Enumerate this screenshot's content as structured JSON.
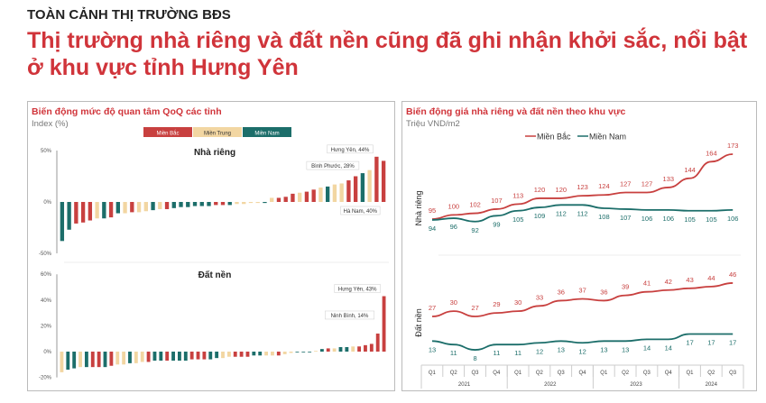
{
  "header": {
    "kicker": "TOÀN CẢNH THỊ TRƯỜNG BĐS",
    "title": "Thị trường nhà riêng và đất nền cũng đã ghi nhận khởi sắc, nổi bật ở khu vực tỉnh Hưng Yên"
  },
  "colors": {
    "mien_bac": "#c8403f",
    "mien_trung": "#f2d6a2",
    "mien_nam": "#1c6e6a",
    "title_red": "#d0343a"
  },
  "chart_data": [
    {
      "type": "bar",
      "title": "Biến động mức độ quan tâm QoQ các tỉnh",
      "subtitle": "Index (%)",
      "legend": [
        "Miền Bắc",
        "Miền Trung",
        "Miền Nam"
      ],
      "legend_placement": "top",
      "panels": [
        {
          "title": "Nhà riêng",
          "ylim": [
            -50,
            50
          ],
          "ticks": [
            "50%",
            "0%",
            "-50%"
          ],
          "tick_values": [
            50,
            0,
            -50
          ],
          "regions": [
            "N",
            "N",
            "B",
            "B",
            "B",
            "T",
            "N",
            "B",
            "N",
            "T",
            "B",
            "T",
            "T",
            "N",
            "T",
            "B",
            "N",
            "N",
            "N",
            "N",
            "N",
            "N",
            "B",
            "B",
            "N",
            "T",
            "T",
            "T",
            "T",
            "N",
            "T",
            "B",
            "B",
            "B",
            "T",
            "B",
            "B",
            "T",
            "N",
            "T",
            "T",
            "B",
            "B",
            "N",
            "T",
            "B",
            "B"
          ],
          "values": [
            -38,
            -27,
            -21,
            -20,
            -18,
            -16,
            -16,
            -15,
            -11,
            -11,
            -10,
            -10,
            -9,
            -8,
            -7,
            -7,
            -6,
            -5,
            -5,
            -4,
            -4,
            -4,
            -3,
            -3,
            -3,
            -2,
            -2,
            -1,
            -1,
            -1,
            4,
            4,
            5,
            8,
            9,
            10,
            12,
            14,
            15,
            17,
            18,
            21,
            25,
            28,
            31,
            44,
            40
          ],
          "annotations": [
            {
              "index": 43,
              "text": "Bình Phước, 28%"
            },
            {
              "index": 45,
              "text": "Hưng Yên, 44%"
            },
            {
              "index": 46,
              "text": "Hà Nam, 40%"
            }
          ]
        },
        {
          "title": "Đất nền",
          "ylim": [
            -20,
            60
          ],
          "ticks": [
            "60%",
            "40%",
            "20%",
            "0%",
            "-20%"
          ],
          "tick_values": [
            60,
            40,
            20,
            0,
            -20
          ],
          "regions": [
            "T",
            "N",
            "N",
            "T",
            "N",
            "B",
            "B",
            "N",
            "B",
            "T",
            "T",
            "N",
            "T",
            "T",
            "B",
            "N",
            "N",
            "B",
            "N",
            "N",
            "N",
            "B",
            "B",
            "B",
            "N",
            "N",
            "T",
            "T",
            "B",
            "B",
            "B",
            "N",
            "N",
            "T",
            "T",
            "B",
            "T",
            "T",
            "N",
            "N",
            "N",
            "T",
            "N",
            "B",
            "T",
            "N",
            "N",
            "T",
            "B",
            "B",
            "B",
            "B",
            "B"
          ],
          "values": [
            -16,
            -14,
            -13,
            -12,
            -12,
            -12,
            -12,
            -12,
            -11,
            -10,
            -10,
            -9,
            -9,
            -8,
            -8,
            -7,
            -7,
            -7,
            -7,
            -7,
            -7,
            -6,
            -6,
            -6,
            -6,
            -5,
            -5,
            -4,
            -4,
            -4,
            -4,
            -3,
            -3,
            -3,
            -3,
            -3,
            -2,
            -1,
            -0.5,
            -0.5,
            -0.5,
            0.5,
            2,
            2.5,
            2.5,
            3.5,
            3.5,
            4,
            4,
            5,
            6,
            14,
            43
          ],
          "annotations": [
            {
              "index": 51,
              "text": "Ninh Bình, 14%"
            },
            {
              "index": 52,
              "text": "Hưng Yên, 43%"
            }
          ]
        }
      ]
    },
    {
      "type": "line",
      "title": "Biến động giá nhà riêng và đất nền theo khu vực",
      "subtitle": "Triệu VND/m2",
      "legend_placement": "top",
      "categories": [
        "Q1",
        "Q2",
        "Q3",
        "Q4",
        "Q1",
        "Q2",
        "Q3",
        "Q4",
        "Q1",
        "Q2",
        "Q3",
        "Q4",
        "Q1",
        "Q2",
        "Q3"
      ],
      "years": [
        {
          "label": "2021",
          "span": 4
        },
        {
          "label": "2022",
          "span": 4
        },
        {
          "label": "2023",
          "span": 4
        },
        {
          "label": "2024",
          "span": 3
        }
      ],
      "panels": [
        {
          "ylabel": "Nhà riêng",
          "series": [
            {
              "name": "Miền Bắc",
              "values": [
                95,
                100,
                102,
                107,
                113,
                120,
                120,
                123,
                124,
                127,
                127,
                133,
                144,
                164,
                173
              ]
            },
            {
              "name": "Miền Nam",
              "values": [
                94,
                96,
                92,
                99,
                105,
                109,
                112,
                112,
                108,
                107,
                106,
                106,
                105,
                105,
                106
              ]
            }
          ]
        },
        {
          "ylabel": "Đất nền",
          "series": [
            {
              "name": "Miền Bắc",
              "values": [
                27,
                30,
                27,
                29,
                30,
                33,
                36,
                37,
                36,
                39,
                41,
                42,
                43,
                44,
                46
              ]
            },
            {
              "name": "Miền Nam",
              "values": [
                13,
                11,
                8,
                11,
                11,
                12,
                13,
                12,
                13,
                13,
                14,
                14,
                17,
                17,
                17
              ]
            }
          ]
        }
      ]
    }
  ]
}
